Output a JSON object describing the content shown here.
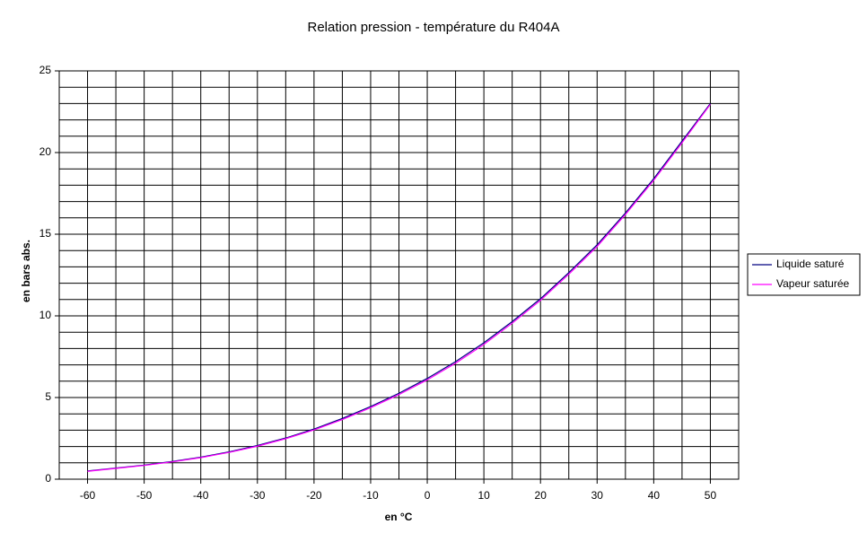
{
  "chart_data": {
    "type": "line",
    "title": "Relation pression - température du R404A",
    "x_label": "en °C",
    "y_label": "en bars abs.",
    "x": [
      -60,
      -55,
      -50,
      -45,
      -40,
      -35,
      -30,
      -25,
      -20,
      -15,
      -10,
      -5,
      0,
      5,
      10,
      15,
      20,
      25,
      30,
      35,
      40,
      45,
      50
    ],
    "series": [
      {
        "name": "Liquide saturé",
        "color": "#000080",
        "values": [
          0.5,
          0.68,
          0.86,
          1.09,
          1.35,
          1.67,
          2.06,
          2.52,
          3.07,
          3.72,
          4.45,
          5.26,
          6.17,
          7.2,
          8.35,
          9.65,
          11.05,
          12.65,
          14.35,
          16.3,
          18.4,
          20.7,
          23.0
        ]
      },
      {
        "name": "Vapeur saturée",
        "color": "#ff00ff",
        "values": [
          0.48,
          0.66,
          0.84,
          1.06,
          1.32,
          1.64,
          2.02,
          2.48,
          3.02,
          3.65,
          4.38,
          5.18,
          6.08,
          7.1,
          8.25,
          9.55,
          10.95,
          12.55,
          14.25,
          16.2,
          18.3,
          20.6,
          22.95
        ]
      }
    ],
    "xlim": [
      -65,
      55
    ],
    "xticks": [
      -60,
      -50,
      -40,
      -30,
      -20,
      -10,
      0,
      10,
      20,
      30,
      40,
      50
    ],
    "x_minor_grid": [
      -65,
      -55,
      -45,
      -35,
      -25,
      -15,
      -5,
      5,
      15,
      25,
      35,
      45,
      55
    ],
    "ylim": [
      0,
      25
    ],
    "yticks": [
      0,
      5,
      10,
      15,
      20,
      25
    ],
    "y_minor_grid": [
      1,
      2,
      3,
      4,
      6,
      7,
      8,
      9,
      11,
      12,
      13,
      14,
      16,
      17,
      18,
      19,
      21,
      22,
      23,
      24
    ],
    "grid": true,
    "legend": "right"
  }
}
